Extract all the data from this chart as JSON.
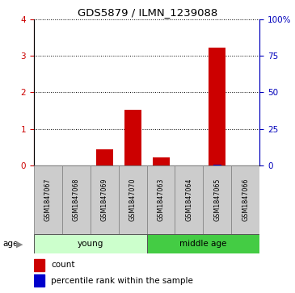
{
  "title": "GDS5879 / ILMN_1239088",
  "samples": [
    "GSM1847067",
    "GSM1847068",
    "GSM1847069",
    "GSM1847070",
    "GSM1847063",
    "GSM1847064",
    "GSM1847065",
    "GSM1847066"
  ],
  "count_values": [
    0.0,
    0.0,
    0.45,
    1.53,
    0.22,
    0.0,
    3.22,
    0.0
  ],
  "percentile_values": [
    0.0,
    0.0,
    0.08,
    0.1,
    0.05,
    0.0,
    0.45,
    0.0
  ],
  "ylim_left": [
    0,
    4
  ],
  "ylim_right": [
    0,
    100
  ],
  "yticks_left": [
    0,
    1,
    2,
    3,
    4
  ],
  "yticks_right": [
    0,
    25,
    50,
    75,
    100
  ],
  "ytick_labels_right": [
    "0",
    "25",
    "50",
    "75",
    "100%"
  ],
  "bar_width": 0.6,
  "count_color": "#CC0000",
  "percentile_color": "#0000CC",
  "left_tick_color": "#CC0000",
  "right_tick_color": "#0000BB",
  "age_label": "age",
  "legend_count": "count",
  "legend_percentile": "percentile rank within the sample",
  "group_young_color": "#CCFFCC",
  "group_middle_color": "#44CC44",
  "sample_box_color": "#CCCCCC",
  "sample_box_edge": "#888888"
}
